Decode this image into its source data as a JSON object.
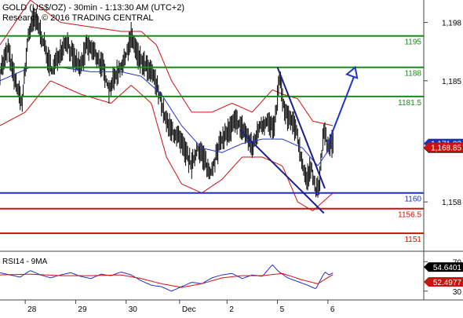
{
  "header": {
    "line1": "GOLD (US$/OZ) - 30min - 1:13:30 AM (UTC+2)",
    "line2": "Research © 2016 TRADING CENTRAL"
  },
  "chart_data": [
    {
      "type": "line",
      "name": "price-panel",
      "y_axis": {
        "ylim": [
          1147,
          1203
        ],
        "ticks": [
          1198,
          1185,
          1158
        ]
      },
      "x_axis": {
        "xlim": [
          0,
          42
        ],
        "ticks": [
          {
            "x": 2.5,
            "label": "28"
          },
          {
            "x": 7.5,
            "label": "29"
          },
          {
            "x": 12.5,
            "label": "30"
          },
          {
            "x": 17.8,
            "label": "Dec"
          },
          {
            "x": 22.5,
            "label": "2"
          },
          {
            "x": 27.5,
            "label": "5"
          },
          {
            "x": 32.5,
            "label": "6"
          }
        ]
      },
      "horizontal_levels": [
        {
          "value": 1195,
          "label": "1195",
          "color": "#1a8a1a"
        },
        {
          "value": 1188,
          "label": "1188",
          "color": "#1a8a1a"
        },
        {
          "value": 1181.5,
          "label": "1181.5",
          "color": "#1a8a1a"
        },
        {
          "value": 1160,
          "label": "1160",
          "color": "#1f2ec8"
        },
        {
          "value": 1156.5,
          "label": "1156.5",
          "color": "#cc1111"
        },
        {
          "value": 1151,
          "label": "1151",
          "color": "#cc1111"
        }
      ],
      "trendlines": [
        {
          "from": [
            23.8,
            1174
          ],
          "to": [
            32.1,
            1155.5
          ],
          "color": "#1a1f8a"
        },
        {
          "from": [
            27.5,
            1188
          ],
          "to": [
            32.2,
            1161
          ],
          "color": "#1a1f8a"
        }
      ],
      "projection_arrow": {
        "from": [
          32.5,
          1171
        ],
        "to": [
          35.2,
          1188
        ],
        "color": "#2233cc"
      },
      "price_badges": [
        {
          "value": "1,171.28",
          "bg": "#000000",
          "fg": "#ffffff"
        },
        {
          "value": "1,171.02",
          "bg": "#1f2ec8",
          "fg": "#ffffff"
        },
        {
          "value": "1,168.85",
          "bg": "#cc1111",
          "fg": "#ffffff"
        }
      ],
      "badge_levels": [
        1171.28,
        1171.02,
        1168.85
      ],
      "price_series_anchors": [
        [
          0,
          1187
        ],
        [
          0.8,
          1192
        ],
        [
          1.6,
          1184
        ],
        [
          2.2,
          1180
        ],
        [
          2.8,
          1195
        ],
        [
          3.4,
          1199
        ],
        [
          4.0,
          1196
        ],
        [
          4.6,
          1191
        ],
        [
          5.2,
          1187
        ],
        [
          6.0,
          1192
        ],
        [
          6.6,
          1194
        ],
        [
          7.3,
          1190
        ],
        [
          8.0,
          1188
        ],
        [
          8.6,
          1193
        ],
        [
          9.4,
          1191
        ],
        [
          10.2,
          1188
        ],
        [
          10.8,
          1183
        ],
        [
          11.6,
          1187
        ],
        [
          12.3,
          1189
        ],
        [
          13.0,
          1195
        ],
        [
          13.8,
          1190
        ],
        [
          14.5,
          1188
        ],
        [
          15.2,
          1186
        ],
        [
          15.8,
          1182
        ],
        [
          16.4,
          1176
        ],
        [
          17.0,
          1174
        ],
        [
          17.7,
          1172
        ],
        [
          18.4,
          1169
        ],
        [
          19.0,
          1166
        ],
        [
          19.6,
          1170
        ],
        [
          20.2,
          1168
        ],
        [
          20.8,
          1164
        ],
        [
          21.4,
          1168
        ],
        [
          22.0,
          1172
        ],
        [
          22.7,
          1174
        ],
        [
          23.4,
          1176
        ],
        [
          24.2,
          1174
        ],
        [
          25.0,
          1170
        ],
        [
          25.8,
          1175
        ],
        [
          26.5,
          1176
        ],
        [
          27.2,
          1174
        ],
        [
          27.7,
          1186
        ],
        [
          28.2,
          1178
        ],
        [
          28.8,
          1176
        ],
        [
          29.4,
          1174
        ],
        [
          29.9,
          1167
        ],
        [
          30.4,
          1163
        ],
        [
          30.9,
          1166
        ],
        [
          31.3,
          1160
        ],
        [
          31.7,
          1163
        ],
        [
          32.1,
          1174
        ],
        [
          32.5,
          1170
        ],
        [
          33.0,
          1171.28
        ]
      ],
      "ma_blue_anchors": [
        [
          0,
          1185
        ],
        [
          3,
          1188
        ],
        [
          6,
          1188
        ],
        [
          9,
          1187
        ],
        [
          12,
          1187
        ],
        [
          14,
          1186
        ],
        [
          16,
          1182
        ],
        [
          18,
          1175
        ],
        [
          20,
          1170
        ],
        [
          22,
          1169
        ],
        [
          24,
          1171
        ],
        [
          26,
          1172
        ],
        [
          28,
          1172
        ],
        [
          30,
          1170
        ],
        [
          31.5,
          1166
        ],
        [
          33,
          1171.02
        ]
      ],
      "bollinger_upper_anchors": [
        [
          0,
          1193
        ],
        [
          3,
          1203
        ],
        [
          6,
          1198
        ],
        [
          9,
          1197
        ],
        [
          12,
          1196
        ],
        [
          14,
          1196
        ],
        [
          15.5,
          1193
        ],
        [
          17,
          1185
        ],
        [
          19,
          1178
        ],
        [
          21,
          1178
        ],
        [
          23,
          1180
        ],
        [
          25,
          1178
        ],
        [
          27,
          1183
        ],
        [
          28,
          1182
        ],
        [
          29.5,
          1181
        ],
        [
          31,
          1176
        ],
        [
          33,
          1175
        ]
      ],
      "bollinger_lower_anchors": [
        [
          0,
          1175
        ],
        [
          2.5,
          1178
        ],
        [
          5,
          1185
        ],
        [
          8,
          1182
        ],
        [
          11,
          1180
        ],
        [
          13,
          1184
        ],
        [
          15,
          1180
        ],
        [
          16.5,
          1168
        ],
        [
          18,
          1162
        ],
        [
          20,
          1160
        ],
        [
          22,
          1163
        ],
        [
          24,
          1168
        ],
        [
          26,
          1168
        ],
        [
          28,
          1166
        ],
        [
          29.5,
          1158
        ],
        [
          31,
          1156
        ],
        [
          33,
          1160
        ]
      ]
    },
    {
      "type": "line",
      "name": "rsi-panel",
      "title": "RSI14 - 9MA",
      "y_axis": {
        "ylim": [
          18,
          82
        ],
        "ticks": [
          70,
          30
        ]
      },
      "rsi_anchors": [
        [
          0,
          55
        ],
        [
          1,
          52
        ],
        [
          2,
          49
        ],
        [
          3,
          58
        ],
        [
          4,
          52
        ],
        [
          5,
          48
        ],
        [
          6,
          52
        ],
        [
          7,
          55
        ],
        [
          8,
          50
        ],
        [
          9,
          47
        ],
        [
          10,
          53
        ],
        [
          11,
          51
        ],
        [
          12,
          56
        ],
        [
          13,
          52
        ],
        [
          14,
          44
        ],
        [
          15,
          38
        ],
        [
          16,
          36
        ],
        [
          17,
          30
        ],
        [
          18,
          36
        ],
        [
          19,
          42
        ],
        [
          20,
          40
        ],
        [
          21,
          48
        ],
        [
          22,
          52
        ],
        [
          23,
          54
        ],
        [
          24,
          47
        ],
        [
          25,
          52
        ],
        [
          26,
          50
        ],
        [
          27,
          66
        ],
        [
          27.5,
          58
        ],
        [
          28.5,
          48
        ],
        [
          29.5,
          43
        ],
        [
          30.5,
          38
        ],
        [
          31.3,
          33
        ],
        [
          31.8,
          46
        ],
        [
          32.2,
          56
        ],
        [
          32.6,
          52
        ],
        [
          33,
          54.64
        ]
      ],
      "ma_anchors": [
        [
          0,
          52
        ],
        [
          3,
          53
        ],
        [
          6,
          51
        ],
        [
          9,
          51
        ],
        [
          12,
          52
        ],
        [
          14,
          47
        ],
        [
          16,
          40
        ],
        [
          18,
          35
        ],
        [
          20,
          40
        ],
        [
          22,
          48
        ],
        [
          24,
          51
        ],
        [
          26,
          51
        ],
        [
          28,
          54
        ],
        [
          30,
          45
        ],
        [
          31.5,
          40
        ],
        [
          33,
          52.5
        ]
      ],
      "rsi_badges": [
        {
          "value": "54.6401",
          "bg": "#000000",
          "fg": "#ffffff"
        },
        {
          "value": "52.4977",
          "bg": "#cc1111",
          "fg": "#ffffff"
        }
      ],
      "rsi_badge_levels": [
        54.64,
        52.4977
      ]
    }
  ],
  "colors": {
    "candles": "#000000",
    "ma_blue": "#2233cc",
    "bollinger": "#cc1111",
    "rsi_line": "#1f2ec8",
    "rsi_ma": "#cc1111",
    "axis": "#444444"
  }
}
